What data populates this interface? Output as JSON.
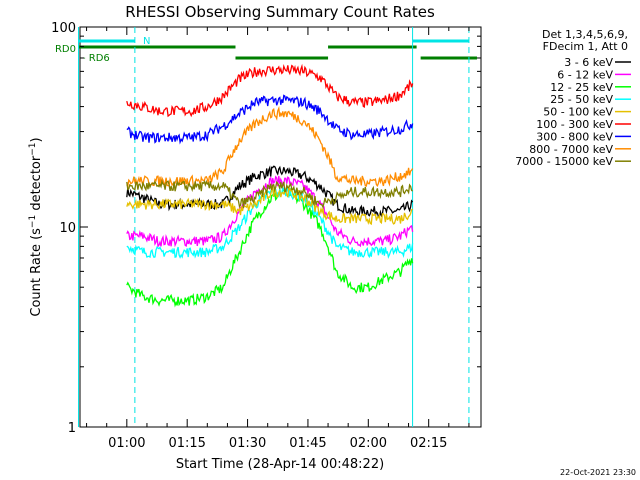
{
  "chart_data": {
    "type": "line",
    "title": "RHESSI Observing Summary Count Rates",
    "xlabel": "Start Time (28-Apr-14 00:48:22)",
    "ylabel": "Count Rate (s⁻¹ detector⁻¹)",
    "ylabel_main": "Count Rate (s",
    "ylabel_mid": " detector",
    "ylabel_end": ")",
    "ylabel_sup": "−1",
    "yscale": "log",
    "ylim": [
      1,
      100
    ],
    "y_ticks": [
      "1",
      "10",
      "100"
    ],
    "x_domain": [
      "00:48:22",
      "02:28:00"
    ],
    "x_ticks": [
      "01:00",
      "01:15",
      "01:30",
      "01:45",
      "02:00",
      "02:15"
    ],
    "detector_note": [
      "Det 1,3,4,5,6,9,",
      "FDecim 1, Att 0"
    ],
    "legend_position": "right",
    "footer_date": "22-Oct-2021 23:30",
    "flags": [
      {
        "name": "N",
        "color": "#00e5e5",
        "segments": [
          [
            "00:48",
            "01:02"
          ],
          [
            "02:11",
            "02:25"
          ]
        ]
      },
      {
        "name": "RD0",
        "color": "#007f00",
        "segments": [
          [
            "00:48",
            "01:27"
          ],
          [
            "01:50",
            "02:12"
          ]
        ]
      },
      {
        "name": "RD6",
        "color": "#007f00",
        "segments": [
          [
            "01:27",
            "01:50"
          ],
          [
            "02:13",
            "02:27"
          ]
        ]
      }
    ],
    "markers": {
      "solid": [
        "00:48",
        "02:11"
      ],
      "dashed": [
        "01:02",
        "02:25"
      ]
    },
    "series": [
      {
        "name": "3 - 6 keV",
        "color": "#000000",
        "x": [
          "01:00",
          "01:04",
          "01:08",
          "01:12",
          "01:16",
          "01:20",
          "01:24",
          "01:28",
          "01:32",
          "01:36",
          "01:40",
          "01:44",
          "01:48",
          "01:52",
          "01:56",
          "02:00",
          "02:04",
          "02:08",
          "02:11"
        ],
        "values": [
          15,
          14,
          13,
          13,
          13,
          13,
          13,
          16,
          18,
          19,
          19,
          18,
          16,
          13,
          12,
          12,
          12,
          12,
          13
        ]
      },
      {
        "name": "6 - 12 keV",
        "color": "#ff00ff",
        "x": [
          "01:00",
          "01:04",
          "01:08",
          "01:12",
          "01:16",
          "01:20",
          "01:24",
          "01:28",
          "01:32",
          "01:36",
          "01:40",
          "01:44",
          "01:48",
          "01:52",
          "01:56",
          "02:00",
          "02:04",
          "02:08",
          "02:11"
        ],
        "values": [
          9,
          9,
          8.5,
          8.5,
          8.5,
          8.5,
          9,
          12,
          15,
          17,
          17,
          16,
          13,
          9.5,
          8.5,
          8.5,
          8.5,
          9,
          10
        ]
      },
      {
        "name": "12 - 25 keV",
        "color": "#00ff00",
        "x": [
          "01:00",
          "01:04",
          "01:08",
          "01:12",
          "01:16",
          "01:20",
          "01:24",
          "01:28",
          "01:32",
          "01:36",
          "01:40",
          "01:44",
          "01:48",
          "01:52",
          "01:56",
          "02:00",
          "02:04",
          "02:08",
          "02:11"
        ],
        "values": [
          5,
          4.5,
          4.3,
          4.3,
          4.3,
          4.5,
          5,
          7.5,
          11,
          14,
          15,
          13,
          10,
          6,
          5,
          5,
          5.5,
          6,
          7
        ]
      },
      {
        "name": "25 - 50 keV",
        "color": "#00ffff",
        "x": [
          "01:00",
          "01:04",
          "01:08",
          "01:12",
          "01:16",
          "01:20",
          "01:24",
          "01:28",
          "01:32",
          "01:36",
          "01:40",
          "01:44",
          "01:48",
          "01:52",
          "01:56",
          "02:00",
          "02:04",
          "02:08",
          "02:11"
        ],
        "values": [
          8,
          7.5,
          7.5,
          7.5,
          7.5,
          7.5,
          8,
          10,
          13,
          15,
          15,
          14,
          11,
          8,
          7.5,
          7.5,
          7.5,
          7.5,
          8
        ]
      },
      {
        "name": "50 - 100 keV",
        "color": "#e5c000",
        "x": [
          "01:00",
          "01:04",
          "01:08",
          "01:12",
          "01:16",
          "01:20",
          "01:24",
          "01:28",
          "01:32",
          "01:36",
          "01:40",
          "01:44",
          "01:48",
          "01:52",
          "01:56",
          "02:00",
          "02:04",
          "02:08",
          "02:11"
        ],
        "values": [
          13,
          13,
          13,
          13,
          13,
          13,
          13,
          12,
          13,
          15,
          15,
          14,
          12,
          11,
          11,
          11,
          11,
          11,
          12
        ]
      },
      {
        "name": "100 - 300 keV",
        "color": "#ff0000",
        "x": [
          "01:00",
          "01:04",
          "01:08",
          "01:12",
          "01:16",
          "01:20",
          "01:24",
          "01:28",
          "01:32",
          "01:36",
          "01:40",
          "01:44",
          "01:48",
          "01:52",
          "01:56",
          "02:00",
          "02:04",
          "02:08",
          "02:11"
        ],
        "values": [
          42,
          40,
          38,
          38,
          38,
          40,
          45,
          55,
          60,
          61,
          61,
          60,
          56,
          45,
          42,
          42,
          43,
          46,
          52
        ]
      },
      {
        "name": "300 - 800 keV",
        "color": "#0000ff",
        "x": [
          "01:00",
          "01:04",
          "01:08",
          "01:12",
          "01:16",
          "01:20",
          "01:24",
          "01:28",
          "01:32",
          "01:36",
          "01:40",
          "01:44",
          "01:48",
          "01:52",
          "01:56",
          "02:00",
          "02:04",
          "02:08",
          "02:11"
        ],
        "values": [
          30,
          28,
          28,
          28,
          28,
          29,
          32,
          37,
          42,
          43,
          43,
          42,
          38,
          31,
          29,
          29,
          30,
          31,
          33
        ]
      },
      {
        "name": "800 - 7000 keV",
        "color": "#ff8c00",
        "x": [
          "01:00",
          "01:04",
          "01:08",
          "01:12",
          "01:16",
          "01:20",
          "01:24",
          "01:28",
          "01:32",
          "01:36",
          "01:40",
          "01:44",
          "01:48",
          "01:52",
          "01:56",
          "02:00",
          "02:04",
          "02:08",
          "02:11"
        ],
        "values": [
          17,
          17,
          17,
          17,
          17,
          17,
          19,
          27,
          33,
          37,
          37,
          34,
          27,
          18,
          17,
          17,
          17,
          18,
          19
        ]
      },
      {
        "name": "7000 - 15000 keV",
        "color": "#7f7f00",
        "x": [
          "01:00",
          "01:04",
          "01:08",
          "01:12",
          "01:16",
          "01:20",
          "01:24",
          "01:28",
          "01:32",
          "01:36",
          "01:40",
          "01:44",
          "01:48",
          "01:52",
          "01:56",
          "02:00",
          "02:04",
          "02:08",
          "02:11"
        ],
        "values": [
          16,
          16,
          16,
          16,
          16,
          16,
          16,
          13,
          14,
          16,
          16,
          15,
          13,
          14,
          15,
          15,
          15,
          15,
          16
        ]
      }
    ]
  }
}
